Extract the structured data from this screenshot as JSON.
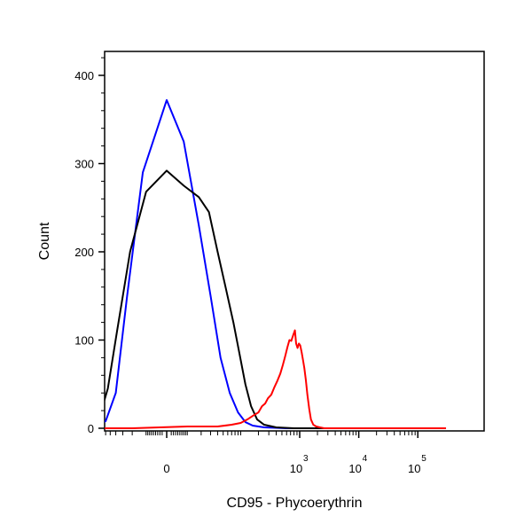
{
  "chart_data": {
    "type": "line",
    "title": "",
    "xlabel": "CD95 - Phycoerythrin",
    "ylabel": "Count",
    "x_scale": "biexponential",
    "x_ticks": [
      {
        "value": 0,
        "label": "0"
      },
      {
        "value": 1000,
        "label": "10",
        "exp": "3"
      },
      {
        "value": 10000,
        "label": "10",
        "exp": "4"
      },
      {
        "value": 100000,
        "label": "10",
        "exp": "5"
      }
    ],
    "y_ticks": [
      0,
      100,
      200,
      300,
      400
    ],
    "ylim": [
      0,
      430
    ],
    "grid": false,
    "legend": "none",
    "series": [
      {
        "color": "#0000ff",
        "points": [
          [
            -200,
            0
          ],
          [
            -90,
            2
          ],
          [
            -60,
            8
          ],
          [
            -40,
            40
          ],
          [
            -25,
            150
          ],
          [
            -12,
            290
          ],
          [
            0,
            372
          ],
          [
            8,
            325
          ],
          [
            18,
            230
          ],
          [
            30,
            150
          ],
          [
            45,
            80
          ],
          [
            65,
            40
          ],
          [
            90,
            18
          ],
          [
            120,
            7
          ],
          [
            160,
            3
          ],
          [
            250,
            1
          ],
          [
            600,
            0
          ],
          [
            300000,
            0
          ]
        ]
      },
      {
        "color": "#000000",
        "points": [
          [
            -300,
            0
          ],
          [
            -150,
            2
          ],
          [
            -100,
            6
          ],
          [
            -75,
            15
          ],
          [
            -55,
            45
          ],
          [
            -38,
            110
          ],
          [
            -22,
            200
          ],
          [
            -10,
            268
          ],
          [
            0,
            292
          ],
          [
            8,
            275
          ],
          [
            18,
            262
          ],
          [
            28,
            245
          ],
          [
            40,
            200
          ],
          [
            55,
            160
          ],
          [
            75,
            120
          ],
          [
            95,
            85
          ],
          [
            120,
            50
          ],
          [
            150,
            25
          ],
          [
            190,
            10
          ],
          [
            250,
            4
          ],
          [
            400,
            1
          ],
          [
            800,
            0
          ],
          [
            300000,
            0
          ]
        ]
      },
      {
        "color": "#ff0000",
        "points": [
          [
            -2000,
            0
          ],
          [
            -100,
            0
          ],
          [
            -20,
            0
          ],
          [
            10,
            2
          ],
          [
            40,
            2
          ],
          [
            70,
            4
          ],
          [
            100,
            6
          ],
          [
            130,
            10
          ],
          [
            160,
            14
          ],
          [
            200,
            18
          ],
          [
            230,
            25
          ],
          [
            260,
            28
          ],
          [
            290,
            34
          ],
          [
            330,
            38
          ],
          [
            370,
            46
          ],
          [
            420,
            54
          ],
          [
            470,
            62
          ],
          [
            520,
            72
          ],
          [
            570,
            82
          ],
          [
            620,
            92
          ],
          [
            670,
            100
          ],
          [
            720,
            99
          ],
          [
            780,
            106
          ],
          [
            830,
            111
          ],
          [
            870,
            96
          ],
          [
            920,
            91
          ],
          [
            970,
            96
          ],
          [
            1020,
            94
          ],
          [
            1080,
            86
          ],
          [
            1140,
            77
          ],
          [
            1200,
            68
          ],
          [
            1270,
            55
          ],
          [
            1350,
            38
          ],
          [
            1450,
            22
          ],
          [
            1550,
            10
          ],
          [
            1700,
            4
          ],
          [
            1900,
            2
          ],
          [
            2200,
            1
          ],
          [
            2600,
            0
          ],
          [
            300000,
            0
          ]
        ]
      }
    ]
  }
}
